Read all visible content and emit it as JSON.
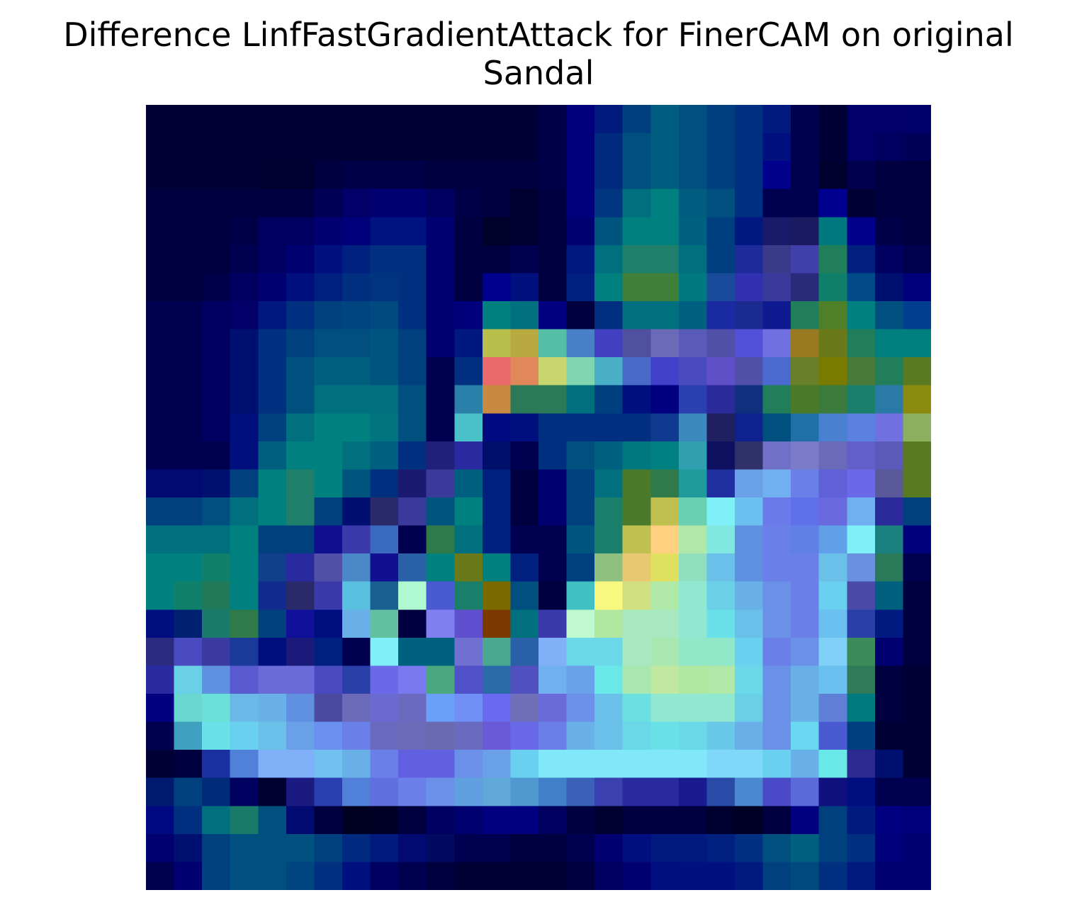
{
  "title_line1": "Difference LinfFastGradientAttack for FinerCAM on original",
  "title_line2": "Sandal",
  "chart_data": {
    "type": "heatmap",
    "title": "Difference LinfFastGradientAttack for FinerCAM on original Sandal",
    "xlabel": "",
    "ylabel": "",
    "axes_visible": false,
    "grid": false,
    "rows": 28,
    "cols": 28,
    "cells": [
      [
        "#000035",
        "#000035",
        "#000035",
        "#000035",
        "#000035",
        "#000035",
        "#000035",
        "#000035",
        "#000035",
        "#000035",
        "#000035",
        "#000035",
        "#000035",
        "#000035",
        "#000048",
        "#00007a",
        "#001a7e",
        "#003f7f",
        "#005d7f",
        "#004f7f",
        "#003f7f",
        "#00307f",
        "#001a80",
        "#000050",
        "#000035",
        "#000068",
        "#000068",
        "#00006a"
      ],
      [
        "#000035",
        "#000035",
        "#000035",
        "#000035",
        "#000035",
        "#000035",
        "#000035",
        "#000035",
        "#000035",
        "#000035",
        "#000035",
        "#000035",
        "#000035",
        "#000035",
        "#000048",
        "#00007a",
        "#002a7e",
        "#004f7f",
        "#005d7f",
        "#004f7f",
        "#003f7f",
        "#00307f",
        "#00117f",
        "#000050",
        "#000035",
        "#000068",
        "#000060",
        "#000058"
      ],
      [
        "#000035",
        "#000035",
        "#000035",
        "#000035",
        "#000030",
        "#000030",
        "#000040",
        "#000048",
        "#000048",
        "#000048",
        "#000040",
        "#000040",
        "#000040",
        "#000040",
        "#000048",
        "#00007a",
        "#002a7e",
        "#004f7f",
        "#005d7f",
        "#004f7f",
        "#003f7f",
        "#00307f",
        "#00008c",
        "#000050",
        "#00002f",
        "#00004f",
        "#000040",
        "#000040"
      ],
      [
        "#000040",
        "#000040",
        "#000040",
        "#000040",
        "#000040",
        "#000040",
        "#000057",
        "#000068",
        "#000070",
        "#000070",
        "#000060",
        "#000048",
        "#000040",
        "#000030",
        "#000040",
        "#00007a",
        "#00357f",
        "#006f7f",
        "#007f7f",
        "#005d7f",
        "#004f7f",
        "#002f7f",
        "#000050",
        "#000050",
        "#000090",
        "#000035",
        "#000040",
        "#000040"
      ],
      [
        "#000040",
        "#000040",
        "#000040",
        "#000048",
        "#000060",
        "#000060",
        "#000070",
        "#00007a",
        "#001280",
        "#001280",
        "#000070",
        "#000040",
        "#000028",
        "#000030",
        "#000040",
        "#000070",
        "#00557f",
        "#007f7f",
        "#007f7f",
        "#00607f",
        "#003f7f",
        "#00187f",
        "#1a1a6a",
        "#1a1a60",
        "#00787f",
        "#00008a",
        "#000048",
        "#000040"
      ],
      [
        "#000040",
        "#000040",
        "#000040",
        "#000050",
        "#000060",
        "#000070",
        "#00117f",
        "#00207f",
        "#00307f",
        "#00307f",
        "#000070",
        "#000040",
        "#000040",
        "#000050",
        "#000040",
        "#00187f",
        "#00707f",
        "#207f6a",
        "#207f6a",
        "#00707f",
        "#003f7f",
        "#1f2a9a",
        "#3a3a8a",
        "#4040aa",
        "#207f5a",
        "#001f7f",
        "#000060",
        "#000050"
      ],
      [
        "#000040",
        "#000040",
        "#00004a",
        "#000060",
        "#000070",
        "#00107f",
        "#00207f",
        "#00307f",
        "#00347f",
        "#00307f",
        "#000070",
        "#000040",
        "#000090",
        "#00107f",
        "#000040",
        "#00207f",
        "#00807f",
        "#407f3a",
        "#407f3a",
        "#00787f",
        "#1a4a9a",
        "#3030b0",
        "#3a3a9a",
        "#2a2a7a",
        "#0f7f6a",
        "#004a8a",
        "#001070",
        "#00007a"
      ],
      [
        "#000050",
        "#000050",
        "#000060",
        "#000068",
        "#00187f",
        "#00307f",
        "#00407f",
        "#00457f",
        "#004a7f",
        "#00307f",
        "#000070",
        "#00007a",
        "#007f7f",
        "#006f7f",
        "#000080",
        "#000040",
        "#002f7f",
        "#00707f",
        "#00707f",
        "#00607f",
        "#1a2aa0",
        "#1a2a90",
        "#101a90",
        "#207f5a",
        "#507f2a",
        "#00807f",
        "#00507f",
        "#003f8f"
      ],
      [
        "#000050",
        "#000050",
        "#000060",
        "#001070",
        "#00307f",
        "#00407f",
        "#004f7f",
        "#004f7f",
        "#00557f",
        "#00407f",
        "#000070",
        "#00187f",
        "#b8bf4a",
        "#b8a940",
        "#55bfa6",
        "#4a80c8",
        "#4040c0",
        "#5050a0",
        "#6a6ab8",
        "#5a5ab8",
        "#5050a8",
        "#5050d8",
        "#7070e0",
        "#9a7a20",
        "#6a7a1a",
        "#207f5a",
        "#007f7f",
        "#007f7f"
      ],
      [
        "#000050",
        "#000050",
        "#000060",
        "#001070",
        "#00307f",
        "#00507f",
        "#005f7f",
        "#005f7f",
        "#00557f",
        "#00407f",
        "#000050",
        "#00307f",
        "#e86a6a",
        "#e0885a",
        "#c8d670",
        "#80d6b0",
        "#4ab0c8",
        "#4a6ac8",
        "#4040c8",
        "#4a4ac0",
        "#6050c8",
        "#5050a8",
        "#4a6ad0",
        "#6a7f2a",
        "#7a7a00",
        "#4a7a3a",
        "#207f5a",
        "#5a7a20"
      ],
      [
        "#000050",
        "#000050",
        "#000060",
        "#001070",
        "#00307f",
        "#00507f",
        "#00707f",
        "#00707f",
        "#00707f",
        "#00507f",
        "#000050",
        "#2a80a8",
        "#c88a40",
        "#2a7a5a",
        "#2a7a5a",
        "#00707f",
        "#003f7f",
        "#00107f",
        "#000080",
        "#2a40b0",
        "#2a2a9a",
        "#0f307f",
        "#207f5a",
        "#4a7a2a",
        "#3a7a3a",
        "#1a7f6a",
        "#2a7aa8",
        "#8a8a10"
      ],
      [
        "#000050",
        "#000050",
        "#000060",
        "#00107f",
        "#00407f",
        "#00707f",
        "#00807f",
        "#00807f",
        "#00757f",
        "#00507f",
        "#000050",
        "#4ac0c8",
        "#000a80",
        "#00107f",
        "#00307f",
        "#00307f",
        "#00307f",
        "#00307f",
        "#0f3a8f",
        "#3a8ac0",
        "#202060",
        "#0f208f",
        "#00507f",
        "#2070a8",
        "#4a80d0",
        "#5a80e0",
        "#7070e0",
        "#8ab060"
      ],
      [
        "#000050",
        "#000050",
        "#000050",
        "#00107f",
        "#00607f",
        "#00807f",
        "#00807f",
        "#00707f",
        "#00607f",
        "#00307f",
        "#20207a",
        "#2a2aa0",
        "#000f6a",
        "#000050",
        "#002f7f",
        "#00507f",
        "#00607f",
        "#00787f",
        "#008080",
        "#30a0b0",
        "#101060",
        "#30306a",
        "#7070c8",
        "#7a7ac8",
        "#6a6ab8",
        "#6060c8",
        "#5a5ab8",
        "#5a7a20"
      ],
      [
        "#000a70",
        "#000a70",
        "#001070",
        "#00407f",
        "#00807f",
        "#207f6a",
        "#00807f",
        "#00557f",
        "#00307f",
        "#1a1a70",
        "#3a3a9a",
        "#00607f",
        "#00207f",
        "#000040",
        "#000070",
        "#00407f",
        "#00707f",
        "#4a7a2a",
        "#307a4a",
        "#209a9a",
        "#2030a0",
        "#6aa0e8",
        "#70b0f0",
        "#6a80e8",
        "#6060d8",
        "#6a6ae8",
        "#5a5a9a",
        "#5a7a20"
      ],
      [
        "#00407f",
        "#00407f",
        "#00507f",
        "#00707f",
        "#00807f",
        "#207f6a",
        "#00407f",
        "#000f70",
        "#2a2a6a",
        "#3a3a9a",
        "#00557f",
        "#00807f",
        "#00207f",
        "#000040",
        "#000070",
        "#00407f",
        "#1a7f6a",
        "#4a7a2a",
        "#c0c050",
        "#6ad0b0",
        "#80f0f8",
        "#6ac0f0",
        "#6a7ae8",
        "#6070e8",
        "#6a6ae0",
        "#70b0f0",
        "#2a2a9a",
        "#00407f"
      ],
      [
        "#00707f",
        "#00707f",
        "#00707f",
        "#00807f",
        "#00407f",
        "#00407f",
        "#0f0f90",
        "#3a3aaa",
        "#3a6ac0",
        "#000050",
        "#307a4a",
        "#00707f",
        "#00207f",
        "#000050",
        "#000050",
        "#00557f",
        "#1a7f6a",
        "#c0c050",
        "#ffd080",
        "#b0e8a8",
        "#80e8e0",
        "#6090e0",
        "#6a80e8",
        "#6080e8",
        "#60a0e8",
        "#80f0f8",
        "#1a8080",
        "#00007a"
      ],
      [
        "#00807f",
        "#00807f",
        "#10806a",
        "#00807f",
        "#10408a",
        "#2a2aa0",
        "#5050a8",
        "#4a88c8",
        "#101090",
        "#2a60a8",
        "#00807f",
        "#6a7a1a",
        "#00807f",
        "#00207f",
        "#000050",
        "#00407f",
        "#90c080",
        "#e8c870",
        "#e0e060",
        "#90e0c0",
        "#6ac0e8",
        "#6090e0",
        "#6a80e8",
        "#6a80e8",
        "#6ac0e8",
        "#6a90e0",
        "#2a7a5a",
        "#000050"
      ],
      [
        "#00807f",
        "#10806a",
        "#207a5a",
        "#00807f",
        "#102a8f",
        "#2a2a6a",
        "#3a3aaa",
        "#5ac0e0",
        "#1a6090",
        "#b0f8d0",
        "#4a5ad0",
        "#1a7f6a",
        "#7a6a00",
        "#00507f",
        "#000040",
        "#40c0c0",
        "#f8f880",
        "#d0e080",
        "#b0e8a8",
        "#90e8d0",
        "#6ad0e8",
        "#6ab0e8",
        "#6a90e8",
        "#6a80e8",
        "#6ad0f0",
        "#4a4aa8",
        "#00607f",
        "#000040"
      ],
      [
        "#000f80",
        "#002070",
        "#1a7a6a",
        "#307a4a",
        "#00407f",
        "#10109a",
        "#000f80",
        "#6ab0e8",
        "#60c0a0",
        "#000040",
        "#8080f0",
        "#6050d0",
        "#7a3a00",
        "#00707f",
        "#3a3aaa",
        "#c0f8d0",
        "#b0e8a0",
        "#a8e8c0",
        "#a8e8c0",
        "#90e8d0",
        "#6ae0e8",
        "#6ac0e8",
        "#6a90e8",
        "#6a80e8",
        "#6ac0f0",
        "#2a40a8",
        "#001a80",
        "#000040"
      ],
      [
        "#2a2a80",
        "#4a4ac0",
        "#3a3aa0",
        "#1a3a9a",
        "#000f80",
        "#1a1a7a",
        "#00207f",
        "#000050",
        "#80f0f8",
        "#00607f",
        "#00607f",
        "#7070d0",
        "#4aa890",
        "#2a60a8",
        "#80b0f8",
        "#6ad8e8",
        "#6ad8e8",
        "#a8e8c0",
        "#a8e8b0",
        "#90e8c8",
        "#90e8c8",
        "#6ad0f0",
        "#6a80e8",
        "#6a90e8",
        "#80d0f8",
        "#3a8a5a",
        "#000070",
        "#000040"
      ],
      [
        "#2a2aa0",
        "#6ad0e8",
        "#6090e0",
        "#5a5ad0",
        "#6a6ad8",
        "#6a6ad8",
        "#4a4ac0",
        "#2a40a8",
        "#6a6ae8",
        "#7a7af0",
        "#4aa880",
        "#5050c8",
        "#2a6aa8",
        "#5050c0",
        "#70b0f0",
        "#6aa0e8",
        "#6ae8e8",
        "#a8e8b0",
        "#c0e8a0",
        "#b0e8a0",
        "#b0e8a8",
        "#6ad8e8",
        "#6a90e8",
        "#6ab0e8",
        "#6ac0f0",
        "#307a5a",
        "#000040",
        "#000035"
      ],
      [
        "#000080",
        "#6ad8d0",
        "#6ae0d8",
        "#6ab8e8",
        "#6ab0e8",
        "#6090e0",
        "#4a4aa0",
        "#6a6ab8",
        "#6a6ad0",
        "#6a6ac0",
        "#6aa0f8",
        "#7090f8",
        "#6a6af0",
        "#7070b8",
        "#6a6ad8",
        "#6a90e8",
        "#6ac0e8",
        "#6ae0e0",
        "#90e8d0",
        "#90e8d0",
        "#90e8d0",
        "#6ad0e8",
        "#6a90e8",
        "#6ab0e8",
        "#6080d8",
        "#007a7f",
        "#000040",
        "#000035"
      ],
      [
        "#000050",
        "#40a0c0",
        "#6ae0e8",
        "#6ad0f0",
        "#6ac0e8",
        "#6aa0e8",
        "#6a90f0",
        "#6a80e8",
        "#6a6ac0",
        "#6a6ab8",
        "#6a6ab0",
        "#6a6ac0",
        "#6a5ad8",
        "#6a6ae8",
        "#6a80e8",
        "#6ab0e8",
        "#6ac0e8",
        "#6ad8e8",
        "#6ae0e8",
        "#6ad8e8",
        "#6ac8e8",
        "#6ab0e8",
        "#6a90e8",
        "#6ad8f0",
        "#4a5ad0",
        "#003f7f",
        "#000035",
        "#000035"
      ],
      [
        "#000035",
        "#000040",
        "#1a30a0",
        "#5080d8",
        "#80b0f8",
        "#80b0f8",
        "#70c0f0",
        "#6ab0e8",
        "#6a80e8",
        "#6060e0",
        "#6060e0",
        "#6a90e8",
        "#6aa0e8",
        "#6ad0f0",
        "#80e8f8",
        "#80e8f8",
        "#80e8f8",
        "#80e8f8",
        "#80e8f8",
        "#80e8f8",
        "#80d8f8",
        "#80d8f8",
        "#6ad0f0",
        "#6ab0e8",
        "#6ae8e8",
        "#2a2a90",
        "#001070",
        "#000035"
      ],
      [
        "#001a70",
        "#00407f",
        "#002a7a",
        "#000060",
        "#000030",
        "#1a1a80",
        "#2a40b0",
        "#5080d8",
        "#6070e0",
        "#6a80e8",
        "#6a90e8",
        "#60a0e0",
        "#60a8d8",
        "#5098d0",
        "#4080c8",
        "#3a60b8",
        "#3a40b0",
        "#2a2aa0",
        "#2a2aa0",
        "#1a1a90",
        "#2a4aa8",
        "#4a88d0",
        "#4a4ac8",
        "#5a6ad8",
        "#10107f",
        "#000f80",
        "#000050",
        "#000050"
      ],
      [
        "#000a80",
        "#00307f",
        "#00707f",
        "#1a7a6a",
        "#00507f",
        "#000a70",
        "#000040",
        "#000020",
        "#000025",
        "#000040",
        "#000060",
        "#000070",
        "#000080",
        "#000080",
        "#000060",
        "#000040",
        "#000030",
        "#000040",
        "#000040",
        "#000040",
        "#000030",
        "#000025",
        "#000040",
        "#000080",
        "#00407f",
        "#001a80",
        "#000080",
        "#00007a"
      ],
      [
        "#000070",
        "#001070",
        "#00407f",
        "#00507f",
        "#00507f",
        "#00507f",
        "#00407f",
        "#002a7f",
        "#001a7f",
        "#000a70",
        "#000a60",
        "#000050",
        "#000050",
        "#000040",
        "#000040",
        "#000050",
        "#000070",
        "#000f80",
        "#001a80",
        "#001a80",
        "#00207f",
        "#00307f",
        "#00507f",
        "#00607f",
        "#00407f",
        "#00307f",
        "#00007a",
        "#000070"
      ],
      [
        "#000050",
        "#000070",
        "#00407f",
        "#00507f",
        "#00507f",
        "#00457f",
        "#00307f",
        "#00107f",
        "#000060",
        "#000050",
        "#000040",
        "#000035",
        "#000035",
        "#000035",
        "#000035",
        "#000040",
        "#000060",
        "#000070",
        "#000f80",
        "#001080",
        "#001080",
        "#001a80",
        "#00407f",
        "#004a7f",
        "#00307f",
        "#001a80",
        "#000070",
        "#000070"
      ]
    ]
  }
}
